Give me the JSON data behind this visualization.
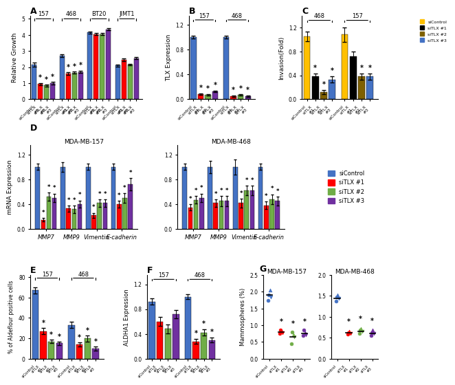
{
  "panel_A": {
    "title": "A",
    "ylabel": "Relative Growth",
    "groups": [
      "157",
      "468",
      "BT20",
      "JIMT1"
    ],
    "categories": [
      "siControl",
      "siTLX #1",
      "siTLX #2",
      "siTLX #3"
    ],
    "values": {
      "157": [
        2.15,
        0.95,
        0.85,
        1.0
      ],
      "468": [
        2.7,
        1.6,
        1.65,
        1.7
      ],
      "BT20": [
        4.15,
        4.05,
        4.05,
        4.35
      ],
      "JIMT1": [
        2.1,
        2.45,
        2.15,
        2.55
      ]
    },
    "errors": {
      "157": [
        0.12,
        0.06,
        0.05,
        0.07
      ],
      "468": [
        0.08,
        0.08,
        0.06,
        0.07
      ],
      "BT20": [
        0.07,
        0.06,
        0.06,
        0.07
      ],
      "JIMT1": [
        0.06,
        0.07,
        0.06,
        0.07
      ]
    },
    "sig": {
      "157": [
        false,
        true,
        true,
        true
      ],
      "468": [
        false,
        true,
        true,
        true
      ],
      "BT20": [
        false,
        false,
        false,
        false
      ],
      "JIMT1": [
        false,
        false,
        false,
        false
      ]
    },
    "colors": [
      "#4472C4",
      "#FF0000",
      "#70AD47",
      "#7030A0"
    ],
    "ylim": [
      0,
      5
    ],
    "yticks": [
      0,
      1,
      2,
      3,
      4,
      5
    ]
  },
  "panel_B": {
    "title": "B",
    "ylabel": "TLX Expression",
    "groups": [
      "157",
      "468"
    ],
    "categories": [
      "siControl",
      "siTLX #1",
      "siTLX #2",
      "siTLX #3"
    ],
    "values": {
      "157": [
        1.0,
        0.08,
        0.07,
        0.13
      ],
      "468": [
        1.0,
        0.05,
        0.07,
        0.05
      ]
    },
    "errors": {
      "157": [
        0.02,
        0.01,
        0.01,
        0.01
      ],
      "468": [
        0.02,
        0.01,
        0.01,
        0.01
      ]
    },
    "sig": {
      "157": [
        false,
        true,
        true,
        true
      ],
      "468": [
        false,
        true,
        true,
        true
      ]
    },
    "colors": [
      "#4472C4",
      "#FF0000",
      "#70AD47",
      "#7030A0"
    ],
    "ylim": [
      0,
      1.3
    ],
    "yticks": [
      0.0,
      0.4,
      0.8,
      1.2
    ]
  },
  "panel_C": {
    "title": "C",
    "ylabel": "Invasion(Fold)",
    "groups": [
      "468",
      "157"
    ],
    "categories": [
      "siControl",
      "siTLX #1",
      "siTLX #2",
      "siTLX #3"
    ],
    "values": {
      "468": [
        1.05,
        0.38,
        0.12,
        0.33
      ],
      "157": [
        1.08,
        0.72,
        0.38,
        0.38
      ]
    },
    "errors": {
      "468": [
        0.08,
        0.05,
        0.03,
        0.05
      ],
      "157": [
        0.12,
        0.08,
        0.05,
        0.05
      ]
    },
    "sig": {
      "468": [
        false,
        true,
        true,
        true
      ],
      "157": [
        false,
        false,
        true,
        true
      ]
    },
    "colors": [
      "#FFC000",
      "#000000",
      "#7F6000",
      "#4472C4"
    ],
    "ylim": [
      0,
      1.3
    ],
    "yticks": [
      0.0,
      0.4,
      0.8,
      1.2
    ],
    "legend": [
      "siControl",
      "siTLX #1",
      "siTLX #2",
      "siTLX #3"
    ]
  },
  "panel_D_157": {
    "title": "MDA-MB-157",
    "ylabel": "mRNA Expression",
    "genes": [
      "MMP7",
      "MMP9",
      "Vimentin",
      "E-cadherin"
    ],
    "categories": [
      "siControl",
      "siTLX #1",
      "siTLX #2",
      "siTLX #3"
    ],
    "values": {
      "MMP7": [
        1.0,
        0.15,
        0.52,
        0.5
      ],
      "MMP9": [
        1.0,
        0.33,
        0.32,
        0.4
      ],
      "Vimentin": [
        1.0,
        0.22,
        0.42,
        0.42
      ],
      "E-cadherin": [
        1.0,
        0.4,
        0.5,
        0.72
      ]
    },
    "errors": {
      "MMP7": [
        0.05,
        0.03,
        0.07,
        0.07
      ],
      "MMP9": [
        0.08,
        0.05,
        0.06,
        0.06
      ],
      "Vimentin": [
        0.05,
        0.04,
        0.06,
        0.06
      ],
      "E-cadherin": [
        0.05,
        0.05,
        0.08,
        0.1
      ]
    },
    "sig": {
      "MMP7": [
        false,
        true,
        true,
        true
      ],
      "MMP9": [
        false,
        true,
        true,
        true
      ],
      "Vimentin": [
        false,
        true,
        true,
        true
      ],
      "E-cadherin": [
        false,
        true,
        true,
        true
      ]
    },
    "colors": [
      "#4472C4",
      "#FF0000",
      "#70AD47",
      "#7030A0"
    ],
    "ylim": [
      0,
      1.3
    ],
    "yticks": [
      0.0,
      0.4,
      0.8,
      1.2
    ]
  },
  "panel_D_468": {
    "title": "MDA-MB-468",
    "ylabel": "mRNA Expression",
    "genes": [
      "MMP7",
      "MMP9",
      "Vimentin",
      "E-cadherin"
    ],
    "categories": [
      "siControl",
      "siTLX #1",
      "siTLX #2",
      "siTLX #3"
    ],
    "values": {
      "MMP7": [
        1.0,
        0.35,
        0.47,
        0.5
      ],
      "MMP9": [
        1.0,
        0.42,
        0.45,
        0.45
      ],
      "Vimentin": [
        1.0,
        0.42,
        0.62,
        0.62
      ],
      "E-cadherin": [
        1.0,
        0.38,
        0.48,
        0.45
      ]
    },
    "errors": {
      "MMP7": [
        0.05,
        0.05,
        0.06,
        0.07
      ],
      "MMP9": [
        0.1,
        0.06,
        0.08,
        0.08
      ],
      "Vimentin": [
        0.12,
        0.07,
        0.08,
        0.08
      ],
      "E-cadherin": [
        0.05,
        0.06,
        0.08,
        0.07
      ]
    },
    "sig": {
      "MMP7": [
        false,
        true,
        true,
        true
      ],
      "MMP9": [
        false,
        true,
        true,
        true
      ],
      "Vimentin": [
        false,
        true,
        true,
        true
      ],
      "E-cadherin": [
        false,
        true,
        true,
        true
      ]
    },
    "colors": [
      "#4472C4",
      "#FF0000",
      "#70AD47",
      "#7030A0"
    ],
    "ylim": [
      0,
      1.3
    ],
    "yticks": [
      0.0,
      0.4,
      0.8,
      1.2
    ]
  },
  "panel_E": {
    "title": "E",
    "ylabel": "% of Aldeflour positive cells",
    "groups": [
      "157",
      "468"
    ],
    "categories": [
      "siControl",
      "siTLX #1",
      "siTLX #2",
      "siTLX #3"
    ],
    "values": {
      "157": [
        67,
        27,
        17,
        15
      ],
      "468": [
        33,
        14,
        20,
        10
      ]
    },
    "errors": {
      "157": [
        3,
        3,
        2,
        2
      ],
      "468": [
        3,
        2,
        3,
        2
      ]
    },
    "sig": {
      "157": [
        false,
        true,
        true,
        true
      ],
      "468": [
        false,
        true,
        true,
        true
      ]
    },
    "colors": [
      "#4472C4",
      "#FF0000",
      "#70AD47",
      "#7030A0"
    ],
    "ylim": [
      0,
      80
    ],
    "yticks": [
      0,
      20,
      40,
      60,
      80
    ]
  },
  "panel_F": {
    "title": "F",
    "ylabel": "ALDHA1 Expression",
    "groups": [
      "157",
      "468"
    ],
    "categories": [
      "siControl",
      "siTLX #1",
      "siTLX #2",
      "siTLX #3"
    ],
    "values": {
      "157": [
        0.92,
        0.6,
        0.48,
        0.72
      ],
      "468": [
        1.0,
        0.28,
        0.42,
        0.3
      ]
    },
    "errors": {
      "157": [
        0.05,
        0.07,
        0.07,
        0.07
      ],
      "468": [
        0.04,
        0.04,
        0.05,
        0.04
      ]
    },
    "sig": {
      "157": [
        false,
        false,
        false,
        false
      ],
      "468": [
        false,
        true,
        true,
        true
      ]
    },
    "colors": [
      "#4472C4",
      "#FF0000",
      "#70AD47",
      "#7030A0"
    ],
    "ylim": [
      0,
      1.3
    ],
    "yticks": [
      0.0,
      0.4,
      0.8,
      1.2
    ]
  },
  "panel_G_157": {
    "title": "MDA-MB-157",
    "ylabel": "Mammospheres (%)",
    "categories": [
      "siControl",
      "siTLX #1",
      "siTLX #2",
      "siTLX #3"
    ],
    "scatter_values": {
      "siControl": [
        1.75,
        1.9,
        2.05,
        1.85
      ],
      "siTLX #1": [
        0.75,
        0.85,
        0.82,
        0.78
      ],
      "siTLX #2": [
        0.45,
        0.8,
        0.72,
        0.65
      ],
      "siTLX #3": [
        0.7,
        0.85,
        0.78,
        0.72
      ]
    },
    "means": [
      1.9,
      0.8,
      0.65,
      0.76
    ],
    "sig": [
      false,
      true,
      true,
      true
    ],
    "colors": [
      "#4472C4",
      "#FF0000",
      "#70AD47",
      "#7030A0"
    ],
    "markers": [
      "o",
      "o",
      "^",
      "v"
    ],
    "ylim": [
      0,
      2.5
    ],
    "yticks": [
      0.0,
      0.5,
      1.0,
      1.5,
      2.0,
      2.5
    ]
  },
  "panel_G_468": {
    "title": "MDA-MB-468",
    "ylabel": "Mammospheres (%)",
    "categories": [
      "siControl",
      "siTLX #1",
      "siTLX #2",
      "siTLX #3"
    ],
    "scatter_values": {
      "siControl": [
        1.38,
        1.48,
        1.52,
        1.45
      ],
      "siTLX #1": [
        0.58,
        0.62,
        0.65,
        0.6
      ],
      "siTLX #2": [
        0.6,
        0.68,
        0.72,
        0.65
      ],
      "siTLX #3": [
        0.55,
        0.62,
        0.68,
        0.6
      ]
    },
    "means": [
      1.45,
      0.62,
      0.66,
      0.61
    ],
    "sig": [
      false,
      true,
      true,
      true
    ],
    "colors": [
      "#4472C4",
      "#FF0000",
      "#70AD47",
      "#7030A0"
    ],
    "markers": [
      "o",
      "o",
      "^",
      "v"
    ],
    "ylim": [
      0,
      2.0
    ],
    "yticks": [
      0.0,
      0.5,
      1.0,
      1.5,
      2.0
    ]
  },
  "legend_D": {
    "labels": [
      "siControl",
      "siTLX #1",
      "siTLX #2",
      "siTLX #3"
    ],
    "colors": [
      "#4472C4",
      "#FF0000",
      "#70AD47",
      "#7030A0"
    ]
  }
}
